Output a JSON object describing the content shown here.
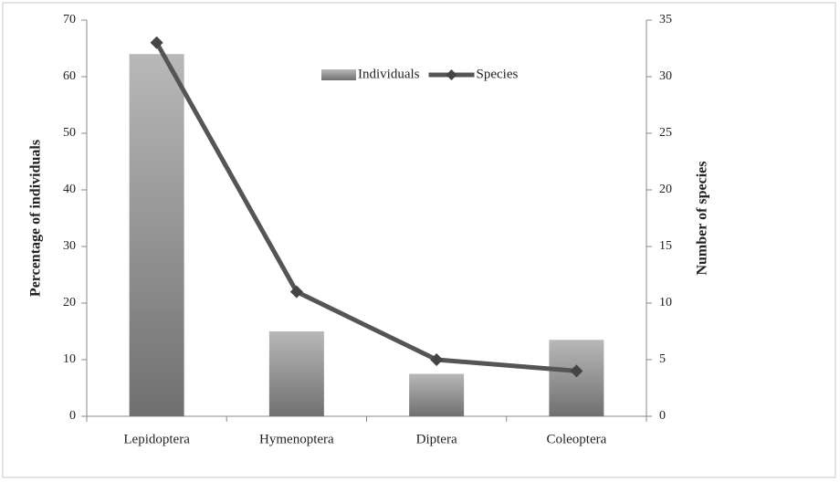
{
  "chart_data": {
    "type": "bar",
    "categories": [
      "Lepidoptera",
      "Hymenoptera",
      "Diptera",
      "Coleoptera"
    ],
    "series": [
      {
        "name": "Individuals",
        "type": "bar",
        "color": "#9a9a9a",
        "values": [
          64,
          15,
          7.5,
          13.5
        ]
      },
      {
        "name": "Species",
        "type": "line",
        "axis": "y2",
        "color": "#555555",
        "values": [
          33,
          11,
          5,
          4
        ]
      }
    ],
    "ylabel": "Percentage of individuals",
    "y2label": "Number of species",
    "ylim": [
      0,
      70
    ],
    "yticks": [
      0,
      10,
      20,
      30,
      40,
      50,
      60,
      70
    ],
    "y2lim": [
      0,
      35
    ],
    "y2ticks": [
      0,
      5,
      10,
      15,
      20,
      25,
      30,
      35
    ],
    "legend": "top"
  }
}
